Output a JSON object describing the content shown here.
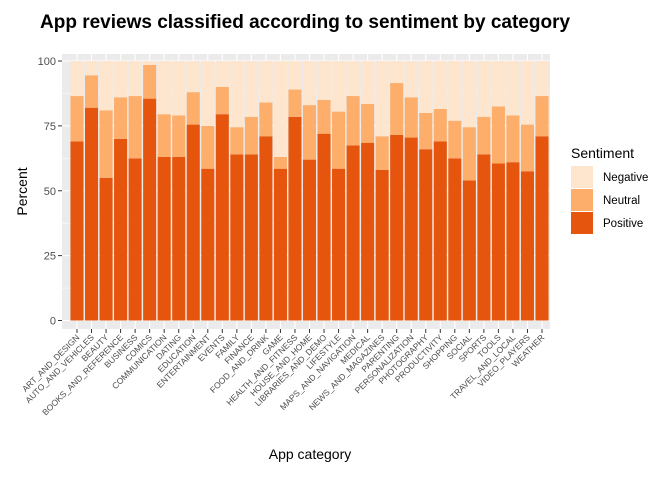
{
  "chart_data": {
    "type": "bar",
    "stacked": true,
    "title": "App reviews classified according to sentiment by category",
    "xlabel": "App category",
    "ylabel": "Percent",
    "ylim": [
      0,
      100
    ],
    "yticks": [
      0,
      25,
      50,
      75,
      100
    ],
    "grid": true,
    "legend": {
      "title": "Sentiment",
      "position": "right"
    },
    "categories": [
      "ART_AND_DESIGN",
      "AUTO_AND_VEHICLES",
      "BEAUTY",
      "BOOKS_AND_REFERENCE",
      "BUSINESS",
      "COMICS",
      "COMMUNICATION",
      "DATING",
      "EDUCATION",
      "ENTERTAINMENT",
      "EVENTS",
      "FAMILY",
      "FINANCE",
      "FOOD_AND_DRINK",
      "GAME",
      "HEALTH_AND_FITNESS",
      "HOUSE_AND_HOME",
      "LIBRARIES_AND_DEMO",
      "LIFESTYLE",
      "MAPS_AND_NAVIGATION",
      "MEDICAL",
      "NEWS_AND_MAGAZINES",
      "PARENTING",
      "PERSONALIZATION",
      "PHOTOGRAPHY",
      "PRODUCTIVITY",
      "SHOPPING",
      "SOCIAL",
      "SPORTS",
      "TOOLS",
      "TRAVEL_AND_LOCAL",
      "VIDEO_PLAYERS",
      "WEATHER"
    ],
    "series": [
      {
        "name": "Positive",
        "color": "#e6550d",
        "values": [
          69,
          82,
          55,
          70,
          62.5,
          85.5,
          63,
          63,
          75.5,
          58.5,
          79.5,
          64,
          64,
          71,
          58.5,
          78.5,
          62,
          72,
          58.5,
          67.5,
          68.5,
          58,
          71.5,
          70.5,
          66,
          69,
          62.5,
          54,
          64,
          60.5,
          61,
          57.5,
          71
        ]
      },
      {
        "name": "Neutral",
        "color": "#fdae6b",
        "values": [
          17.5,
          12.5,
          26,
          16,
          24,
          13,
          16.5,
          16,
          12.5,
          16.5,
          10.5,
          10.5,
          14.5,
          13,
          4.5,
          10.5,
          21,
          13,
          22,
          19,
          15,
          13,
          20,
          15.5,
          14,
          12.5,
          14.5,
          20.5,
          14.5,
          22,
          18,
          18,
          15.5
        ]
      },
      {
        "name": "Negative",
        "color": "#fee6ce",
        "values": [
          13.5,
          5.5,
          19,
          14,
          13.5,
          1.5,
          20.5,
          21,
          12,
          25,
          10,
          25.5,
          21.5,
          16,
          37,
          11,
          17,
          15,
          19.5,
          13.5,
          16.5,
          29,
          8.5,
          14,
          20,
          18.5,
          23,
          25.5,
          21.5,
          17.5,
          21,
          24.5,
          13.5
        ]
      }
    ]
  }
}
